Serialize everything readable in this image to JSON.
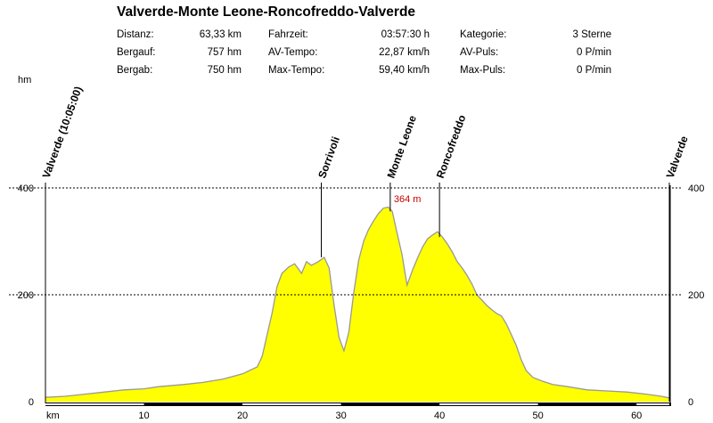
{
  "title": "Valverde-Monte Leone-Roncofreddo-Valverde",
  "stats": [
    {
      "label": "Distanz:",
      "value": "63,33 km"
    },
    {
      "label": "Fahrzeit:",
      "value": "03:57:30 h"
    },
    {
      "label": "Kategorie:",
      "value": "3 Sterne"
    },
    {
      "label": "Bergauf:",
      "value": "757 hm"
    },
    {
      "label": "AV-Tempo:",
      "value": "22,87 km/h"
    },
    {
      "label": "AV-Puls:",
      "value": "0 P/min"
    },
    {
      "label": "Bergab:",
      "value": "750 hm"
    },
    {
      "label": "Max-Tempo:",
      "value": "59,40 km/h"
    },
    {
      "label": "Max-Puls:",
      "value": "0 P/min"
    }
  ],
  "chart_data": {
    "type": "area",
    "ylabel": "hm",
    "xlabel": "km",
    "xlim": [
      0,
      63.33
    ],
    "ylim": [
      0,
      400
    ],
    "y_ticks": [
      0,
      200,
      400
    ],
    "x_ticks": [
      10,
      20,
      30,
      40,
      50,
      60
    ],
    "gridlines_y": [
      200,
      400
    ],
    "fill_color": "#ffff00",
    "line_color": "#999999",
    "max_label": "364 m",
    "max_point": {
      "x": 35,
      "y": 364
    },
    "waypoints": [
      {
        "name": "Valverde (10:05:00)",
        "x": 0
      },
      {
        "name": "Sorrivoli",
        "x": 28
      },
      {
        "name": "Monte Leone",
        "x": 35
      },
      {
        "name": "Roncofreddo",
        "x": 40
      },
      {
        "name": "Valverde",
        "x": 63.33
      }
    ],
    "profile": {
      "x": [
        0,
        2,
        4,
        6,
        8,
        10,
        11.5,
        14,
        16,
        18,
        20,
        21.5,
        22,
        22.5,
        23,
        23.5,
        24,
        24.7,
        25.3,
        26,
        26.5,
        27,
        27.7,
        28.3,
        28.8,
        29.3,
        29.8,
        30.3,
        30.8,
        31.3,
        31.8,
        32.3,
        32.8,
        33.3,
        33.8,
        34.3,
        34.8,
        35.2,
        35.7,
        36.2,
        36.7,
        37.3,
        37.8,
        38.3,
        38.8,
        39.3,
        39.8,
        40.3,
        40.8,
        41.3,
        41.8,
        42.3,
        42.8,
        43.3,
        43.8,
        44.3,
        44.8,
        45.3,
        45.8,
        46.3,
        46.8,
        47.3,
        47.8,
        48.3,
        48.8,
        49.5,
        50.5,
        51.5,
        53,
        55,
        57,
        59,
        61,
        62.5,
        63.33
      ],
      "y": [
        8,
        10,
        14,
        18,
        22,
        24,
        28,
        32,
        36,
        42,
        52,
        65,
        85,
        125,
        165,
        215,
        240,
        252,
        258,
        240,
        262,
        255,
        262,
        270,
        250,
        180,
        120,
        95,
        130,
        205,
        265,
        300,
        322,
        338,
        352,
        362,
        364,
        356,
        315,
        275,
        218,
        248,
        270,
        290,
        305,
        312,
        318,
        308,
        295,
        280,
        262,
        250,
        236,
        220,
        200,
        190,
        180,
        172,
        165,
        160,
        145,
        125,
        105,
        78,
        58,
        45,
        38,
        32,
        28,
        22,
        20,
        18,
        14,
        10,
        7
      ]
    }
  }
}
